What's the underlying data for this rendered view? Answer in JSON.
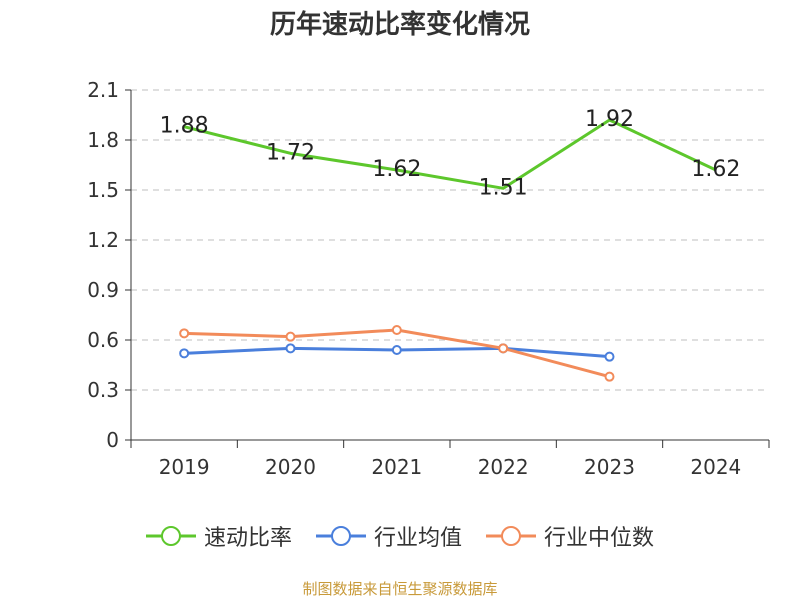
{
  "chart_data": {
    "type": "line",
    "title": "历年速动比率变化情况",
    "categories": [
      "2019",
      "2020",
      "2021",
      "2022",
      "2023",
      "2024"
    ],
    "ylim": [
      0,
      2.1
    ],
    "yticks": [
      "0",
      "0.3",
      "0.6",
      "0.9",
      "1.2",
      "1.5",
      "1.8",
      "2.1"
    ],
    "grid": true,
    "legend_position": "bottom",
    "series": [
      {
        "name": "速动比率",
        "values": [
          1.88,
          1.72,
          1.62,
          1.51,
          1.92,
          1.62
        ],
        "labels": [
          "1.88",
          "1.72",
          "1.62",
          "1.51",
          "1.92",
          "1.62"
        ],
        "color": "#5dc72c"
      },
      {
        "name": "行业均值",
        "values": [
          0.52,
          0.55,
          0.54,
          0.55,
          0.5,
          null
        ],
        "color": "#4a7fdc"
      },
      {
        "name": "行业中位数",
        "values": [
          0.64,
          0.62,
          0.66,
          0.55,
          0.38,
          null
        ],
        "color": "#f28b5a"
      }
    ]
  },
  "source_note": "制图数据来自恒生聚源数据库"
}
